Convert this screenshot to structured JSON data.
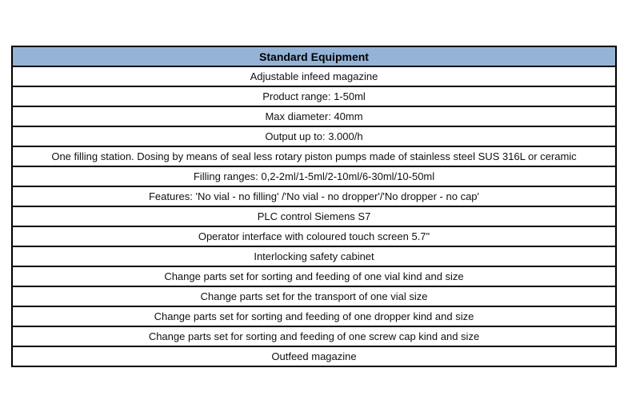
{
  "table": {
    "title": "Standard Equipment",
    "rows": [
      "Adjustable infeed magazine",
      "Product range: 1-50ml",
      "Max diameter: 40mm",
      "Output up to: 3.000/h",
      "One filling station. Dosing by means of seal less rotary piston pumps made of stainless steel SUS 316L or ceramic",
      "Filling ranges: 0,2-2ml/1-5ml/2-10ml/6-30ml/10-50ml",
      "Features: 'No vial - no filling' /'No vial - no dropper'/'No dropper - no cap'",
      "PLC control Siemens S7",
      "Operator interface with coloured touch screen 5.7\"",
      "Interlocking safety cabinet",
      "Change parts set for sorting and feeding of one vial kind and size",
      "Change parts set for the transport of one vial size",
      "Change parts set for sorting and feeding of one dropper kind and size",
      "Change parts set for sorting and feeding of one screw cap kind and size",
      "Outfeed magazine"
    ],
    "colors": {
      "header_bg": "#95B3D7",
      "border": "#000000"
    }
  }
}
